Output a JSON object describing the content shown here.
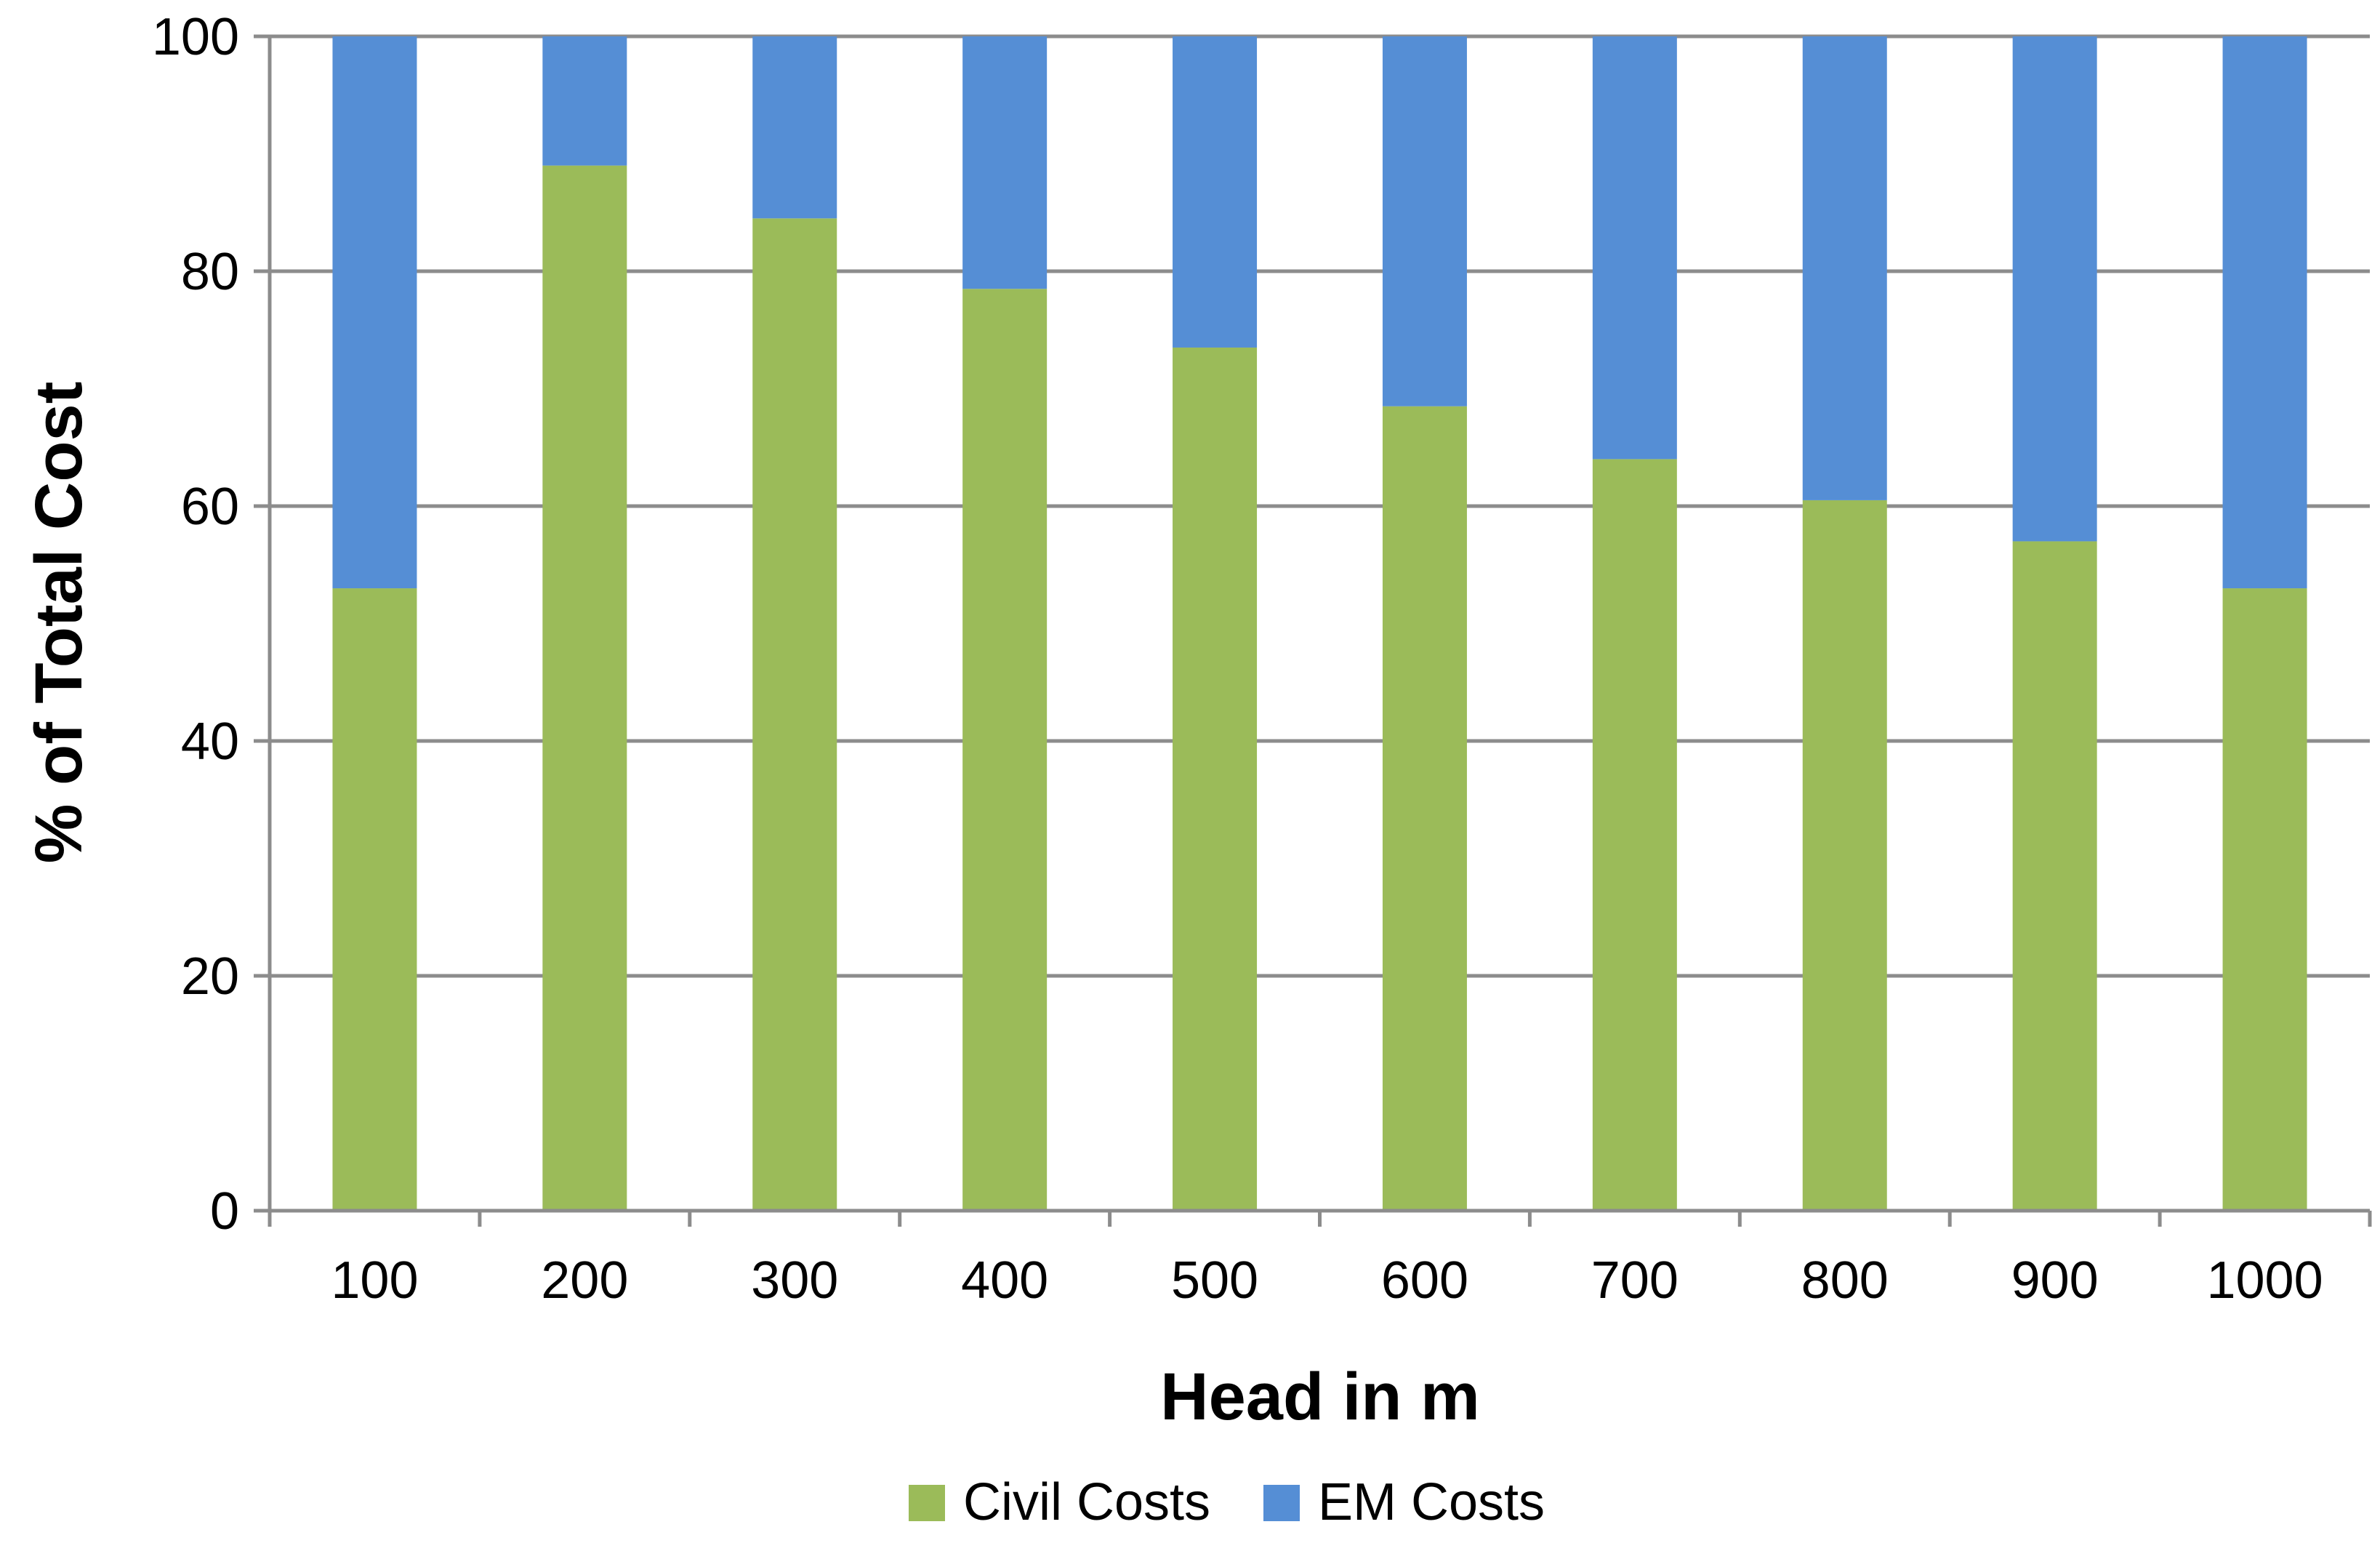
{
  "chart_data": {
    "type": "bar",
    "stacked": true,
    "percent_stacked": true,
    "title": "",
    "xlabel": "Head in m",
    "ylabel": "% of Total Cost",
    "categories": [
      "100",
      "200",
      "300",
      "400",
      "500",
      "600",
      "700",
      "800",
      "900",
      "1000"
    ],
    "series": [
      {
        "name": "Civil Costs",
        "color": "#9bbb59",
        "values": [
          53,
          89,
          84.5,
          78.5,
          73.5,
          68.5,
          64,
          60.5,
          57,
          53
        ]
      },
      {
        "name": "EM Costs",
        "color": "#558ed5",
        "values": [
          47,
          11,
          15.5,
          21.5,
          26.5,
          31.5,
          36,
          39.5,
          43,
          47
        ]
      }
    ],
    "ylim": [
      0,
      100
    ],
    "yticks": [
      "0",
      "20",
      "40",
      "60",
      "80",
      "100"
    ],
    "grid": "horizontal",
    "legend": "bottom"
  }
}
